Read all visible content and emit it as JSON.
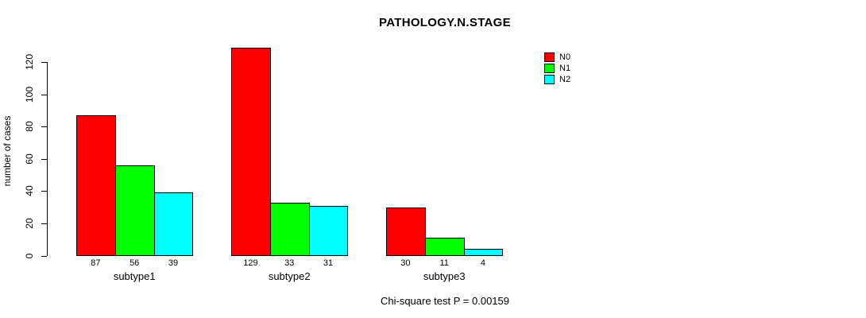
{
  "title": "PATHOLOGY.N.STAGE",
  "footer": "Chi-square test P = 0.00159",
  "y_axis": {
    "label": "number of cases",
    "ticks": [
      0,
      20,
      40,
      60,
      80,
      100,
      120
    ]
  },
  "legend": {
    "position": "top-right",
    "items": [
      {
        "label": "N0",
        "color": "#FF0000"
      },
      {
        "label": "N1",
        "color": "#00FF00"
      },
      {
        "label": "N2",
        "color": "#00FFFF"
      }
    ]
  },
  "chart_data": {
    "type": "bar",
    "title": "PATHOLOGY.N.STAGE",
    "xlabel": "",
    "ylabel": "number of cases",
    "categories": [
      "subtype1",
      "subtype2",
      "subtype3"
    ],
    "series": [
      {
        "name": "N0",
        "color": "#FF0000",
        "values": [
          87,
          129,
          30
        ]
      },
      {
        "name": "N1",
        "color": "#00FF00",
        "values": [
          56,
          33,
          11
        ]
      },
      {
        "name": "N2",
        "color": "#00FFFF",
        "values": [
          39,
          31,
          4
        ]
      }
    ],
    "bar_value_labels": [
      [
        87,
        56,
        39
      ],
      [
        129,
        33,
        31
      ],
      [
        30,
        11,
        4
      ]
    ],
    "ylim": [
      0,
      130
    ],
    "axis_tick_max": 120,
    "grid": false,
    "legend_position": "top-right",
    "annotation": "Chi-square test P = 0.00159",
    "bar_border_color": "#000000",
    "background_color": "#FFFFFF"
  }
}
